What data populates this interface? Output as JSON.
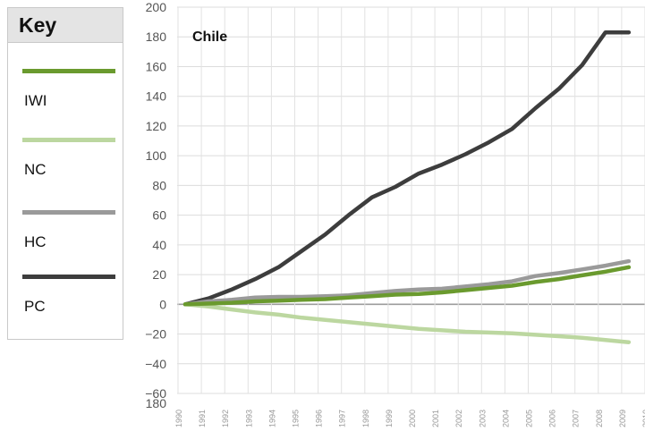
{
  "legend": {
    "title": "Key",
    "items": [
      {
        "label": "IWI",
        "color": "#6a9a2e"
      },
      {
        "label": "NC",
        "color": "#bcd7a0"
      },
      {
        "label": "HC",
        "color": "#9a9a9a"
      },
      {
        "label": "PC",
        "color": "#3d3d3d"
      }
    ]
  },
  "chart_data": {
    "type": "line",
    "title": "Chile",
    "xlabel": "",
    "ylabel": "",
    "ylim": [
      -60,
      200
    ],
    "yticks": [
      "200",
      "180",
      "160",
      "140",
      "120",
      "100",
      "80",
      "60",
      "40",
      "20",
      "0",
      "−20",
      "−40",
      "−60"
    ],
    "bottom_label": "180",
    "xticks": [
      "1990",
      "1991",
      "1992",
      "1993",
      "1994",
      "1995",
      "1996",
      "1997",
      "1998",
      "1999",
      "2000",
      "2001",
      "2002",
      "2003",
      "2004",
      "2005",
      "2006",
      "2007",
      "2008",
      "2009",
      "2010"
    ],
    "x": [
      1990,
      1991,
      1992,
      1993,
      1994,
      1995,
      1996,
      1997,
      1998,
      1999,
      2000,
      2001,
      2002,
      2003,
      2004,
      2005,
      2006,
      2007,
      2008,
      2009
    ],
    "grid": true,
    "legend_position": "left",
    "series": [
      {
        "name": "IWI",
        "color": "#6a9a2e",
        "values": [
          0,
          0.5,
          1,
          2,
          2.5,
          3,
          3.5,
          4.5,
          5.5,
          6.5,
          7,
          8,
          9.5,
          11,
          12.5,
          15,
          17,
          19.5,
          22,
          25
        ]
      },
      {
        "name": "NC",
        "color": "#bcd7a0",
        "values": [
          0,
          -1.5,
          -3.5,
          -5.5,
          -7,
          -9,
          -10.5,
          -12,
          -13.5,
          -15,
          -16.5,
          -17.5,
          -18.5,
          -19,
          -19.5,
          -20.5,
          -21.5,
          -22.5,
          -24,
          -25.5
        ]
      },
      {
        "name": "HC",
        "color": "#9a9a9a",
        "values": [
          0,
          2,
          3,
          4.5,
          5,
          5,
          5.5,
          6,
          7.5,
          9,
          10,
          10.5,
          12,
          13.5,
          15.5,
          19,
          21,
          23.5,
          26,
          29
        ]
      },
      {
        "name": "PC",
        "color": "#3d3d3d",
        "values": [
          0,
          4,
          10,
          17,
          25,
          36,
          47,
          60,
          72,
          79,
          88,
          94,
          101,
          109,
          118,
          132,
          145,
          161,
          183,
          183
        ]
      }
    ]
  }
}
